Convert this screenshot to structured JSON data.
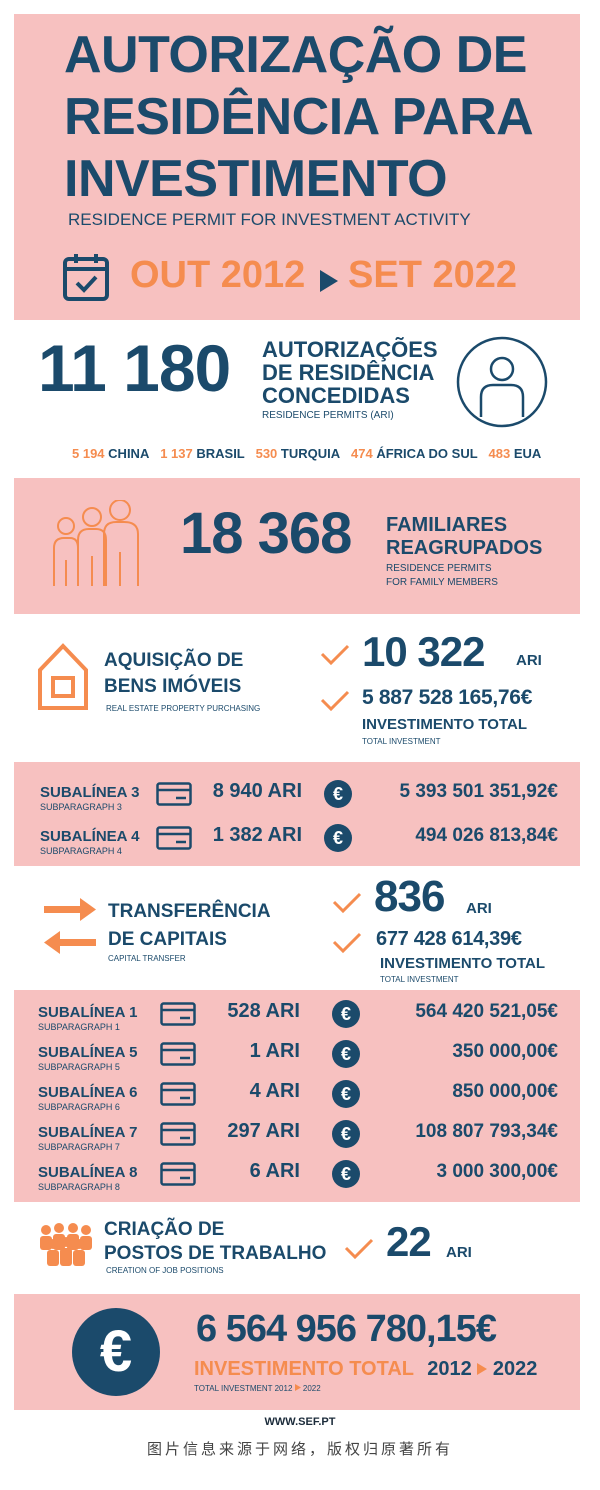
{
  "header": {
    "title_line1": "AUTORIZAÇÃO DE",
    "title_line2": "RESIDÊNCIA PARA",
    "title_line3": "INVESTIMENTO",
    "subtitle": "RESIDENCE PERMIT FOR INVESTMENT ACTIVITY",
    "date_start": "OUT 2012",
    "date_end": "SET 2022"
  },
  "permits": {
    "total": "11 180",
    "label_line1": "AUTORIZAÇÕES",
    "label_line2": "DE RESIDÊNCIA",
    "label_line3": "CONCEDIDAS",
    "sublabel": "RESIDENCE PERMITS  (ARI)",
    "countries": [
      {
        "count": "5 194",
        "name": "CHINA"
      },
      {
        "count": "1 137",
        "name": "BRASIL"
      },
      {
        "count": "530",
        "name": "TURQUIA"
      },
      {
        "count": "474",
        "name": "ÁFRICA DO SUL"
      },
      {
        "count": "483",
        "name": "EUA"
      }
    ]
  },
  "family": {
    "total": "18 368",
    "label_line1": "FAMILIARES",
    "label_line2": "REAGRUPADOS",
    "sub_line1": "RESIDENCE PERMITS",
    "sub_line2": "FOR FAMILY MEMBERS"
  },
  "real_estate": {
    "label_line1": "AQUISIÇÃO DE",
    "label_line2": "BENS IMÓVEIS",
    "sublabel": "REAL ESTATE PROPERTY PURCHASING",
    "ari_count": "10 322",
    "ari_unit": "ARI",
    "investment": "5 887 528 165,76€",
    "investment_label": "INVESTIMENTO TOTAL",
    "investment_sub": "TOTAL INVESTMENT",
    "rows": [
      {
        "label": "SUBALÍNEA 3",
        "sub": "SUBPARAGRAPH 3",
        "ari": "8 940 ARI",
        "euro_sign": "€",
        "value": "5 393 501 351,92€"
      },
      {
        "label": "SUBALÍNEA 4",
        "sub": "SUBPARAGRAPH 4",
        "ari": "1 382 ARI",
        "euro_sign": "€",
        "value": "494 026 813,84€"
      }
    ]
  },
  "capital": {
    "label_line1": "TRANSFERÊNCIA",
    "label_line2": "DE CAPITAIS",
    "sublabel": "CAPITAL TRANSFER",
    "ari_count": "836",
    "ari_unit": "ARI",
    "investment": "677 428 614,39€",
    "investment_label": "INVESTIMENTO TOTAL",
    "investment_sub": "TOTAL INVESTMENT",
    "rows": [
      {
        "label": "SUBALÍNEA 1",
        "sub": "SUBPARAGRAPH 1",
        "ari": "528 ARI",
        "euro_sign": "€",
        "value": "564 420 521,05€"
      },
      {
        "label": "SUBALÍNEA 5",
        "sub": "SUBPARAGRAPH 5",
        "ari": "1 ARI",
        "euro_sign": "€",
        "value": "350 000,00€"
      },
      {
        "label": "SUBALÍNEA 6",
        "sub": "SUBPARAGRAPH 6",
        "ari": "4 ARI",
        "euro_sign": "€",
        "value": "850 000,00€"
      },
      {
        "label": "SUBALÍNEA 7",
        "sub": "SUBPARAGRAPH 7",
        "ari": "297 ARI",
        "euro_sign": "€",
        "value": "108 807 793,34€"
      },
      {
        "label": "SUBALÍNEA 8",
        "sub": "SUBPARAGRAPH 8",
        "ari": "6 ARI",
        "euro_sign": "€",
        "value": "3 000 300,00€"
      }
    ]
  },
  "jobs": {
    "label_line1": "CRIAÇÃO DE",
    "label_line2": "POSTOS DE TRABALHO",
    "sublabel": "CREATION OF JOB POSITIONS",
    "ari_count": "22",
    "ari_unit": "ARI"
  },
  "total": {
    "euro_sign": "€",
    "value": "6 564 956 780,15€",
    "label": "INVESTIMENTO TOTAL",
    "year_start": "2012",
    "year_end": "2022",
    "sub_prefix": "TOTAL INVESTMENT  2012",
    "sub_end": "2022"
  },
  "footer": {
    "url": "WWW.SEF.PT",
    "caption": "图片信息来源于网络，版权归原著所有"
  },
  "colors": {
    "navy": "#1b4a6b",
    "orange": "#f58c4f",
    "pink": "#f7c1c0"
  },
  "icons": [
    "calendar-icon",
    "play-arrow-icon",
    "person-circle-icon",
    "family-icon",
    "house-icon",
    "check-icon",
    "card-icon",
    "euro-icon",
    "transfer-arrows-icon",
    "workers-icon"
  ]
}
